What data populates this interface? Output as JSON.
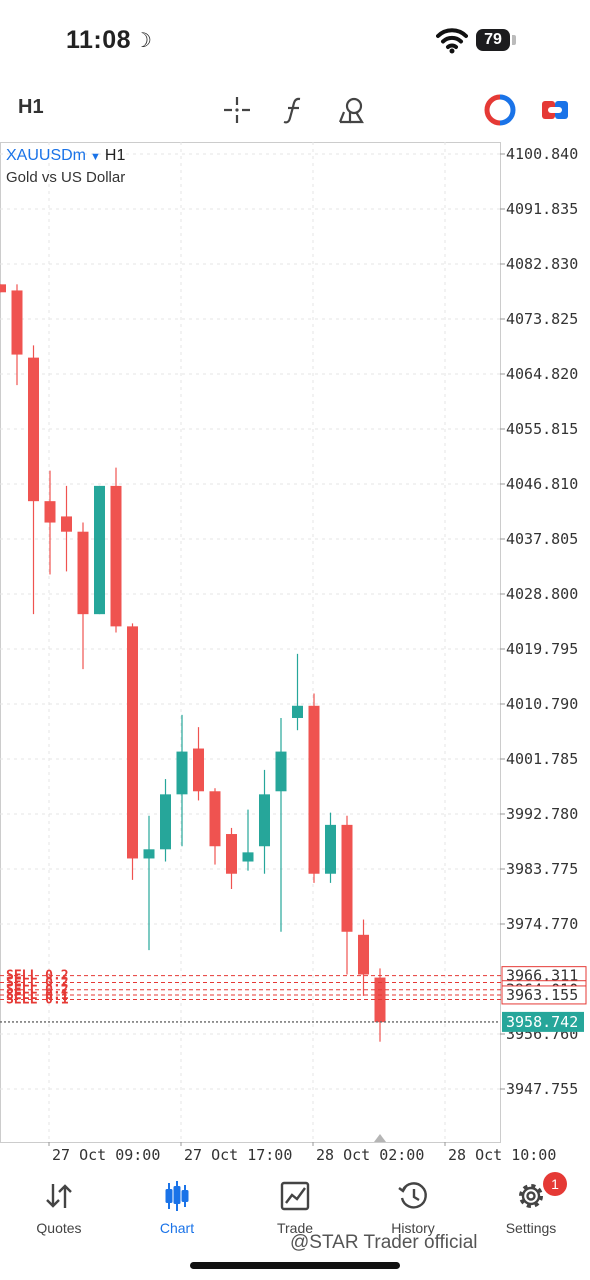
{
  "status_bar": {
    "time": "11:08",
    "battery": "79"
  },
  "toolbar": {
    "timeframe": "H1",
    "tools": [
      "crosshair-icon",
      "function-icon",
      "objects-icon",
      "one-click-trading-icon",
      "trade-toggle-icon"
    ]
  },
  "chart_header": {
    "symbol": "XAUUSDm",
    "timeframe": "H1",
    "description": "Gold vs US Dollar"
  },
  "colors": {
    "bull": "#26a69a",
    "bear": "#ef5350",
    "grid": "#e6e6e6",
    "axis": "#cccccc",
    "accent": "#1a73e8",
    "price_label": "#26a69a",
    "trade_line": "#e53935"
  },
  "chart_data": {
    "type": "candlestick",
    "ylim": [
      3940.0,
      4105.0
    ],
    "y_ticks": [
      "4100.840",
      "4091.835",
      "4082.830",
      "4073.825",
      "4064.820",
      "4055.815",
      "4046.810",
      "4037.805",
      "4028.800",
      "4019.795",
      "4010.790",
      "4001.785",
      "3992.780",
      "3983.775",
      "3974.770",
      "3956.760",
      "3947.755"
    ],
    "x_ticks": [
      "27 Oct 09:00",
      "27 Oct 17:00",
      "28 Oct 02:00",
      "28 Oct 10:00"
    ],
    "candles": [
      {
        "o": 4079.5,
        "h": 4079.5,
        "c": 4078.2,
        "l": 4078.2
      },
      {
        "o": 4078.5,
        "h": 4079.5,
        "c": 4068.0,
        "l": 4063.0
      },
      {
        "o": 4067.5,
        "h": 4069.5,
        "c": 4044.0,
        "l": 4025.5
      },
      {
        "o": 4044.0,
        "h": 4049.0,
        "c": 4040.5,
        "l": 4032.0
      },
      {
        "o": 4041.5,
        "h": 4046.5,
        "c": 4039.0,
        "l": 4032.5
      },
      {
        "o": 4039.0,
        "h": 4040.5,
        "c": 4025.5,
        "l": 4016.5
      },
      {
        "o": 4025.5,
        "h": 4046.5,
        "c": 4046.5,
        "l": 4025.5
      },
      {
        "o": 4046.5,
        "h": 4049.5,
        "c": 4023.5,
        "l": 4022.5
      },
      {
        "o": 4023.5,
        "h": 4024.0,
        "c": 3985.5,
        "l": 3982.0
      },
      {
        "o": 3985.5,
        "h": 3992.5,
        "c": 3987.0,
        "l": 3970.5
      },
      {
        "o": 3987.0,
        "h": 3998.5,
        "c": 3996.0,
        "l": 3985.0
      },
      {
        "o": 3996.0,
        "h": 4009.0,
        "c": 4003.0,
        "l": 3987.5
      },
      {
        "o": 4003.5,
        "h": 4007.0,
        "c": 3996.5,
        "l": 3995.0
      },
      {
        "o": 3996.5,
        "h": 3997.0,
        "c": 3987.5,
        "l": 3984.5
      },
      {
        "o": 3989.5,
        "h": 3990.5,
        "c": 3983.0,
        "l": 3980.5
      },
      {
        "o": 3985.0,
        "h": 3993.5,
        "c": 3986.5,
        "l": 3983.5
      },
      {
        "o": 3987.5,
        "h": 4000.0,
        "c": 3996.0,
        "l": 3983.0
      },
      {
        "o": 3996.5,
        "h": 4008.5,
        "c": 4003.0,
        "l": 3973.5
      },
      {
        "o": 4008.5,
        "h": 4019.0,
        "c": 4010.5,
        "l": 4006.5
      },
      {
        "o": 4010.5,
        "h": 4012.5,
        "c": 3983.0,
        "l": 3981.5
      },
      {
        "o": 3983.0,
        "h": 3993.0,
        "c": 3991.0,
        "l": 3981.5
      },
      {
        "o": 3991.0,
        "h": 3992.5,
        "c": 3973.5,
        "l": 3966.5
      },
      {
        "o": 3973.0,
        "h": 3975.5,
        "c": 3966.5,
        "l": 3963.0
      },
      {
        "o": 3966.0,
        "h": 3967.5,
        "c": 3958.7,
        "l": 3955.5
      }
    ],
    "current_price": 3958.742,
    "trade_lines": [
      {
        "label": "SELL 0.2",
        "price": 3966.311
      },
      {
        "label": "SELL 0.2",
        "price": 3965.2
      },
      {
        "label": "SELL 0.2",
        "price": 3964.01
      },
      {
        "label": "SELL 0.1",
        "price": 3963.155
      },
      {
        "label": "SELL 0.1",
        "price": 3962.4
      }
    ],
    "price_labels": [
      "3966.311",
      "3964.010",
      "3963.155"
    ],
    "current_price_label": "3958.742"
  },
  "nav": [
    {
      "label": "Quotes",
      "icon": "quotes-icon"
    },
    {
      "label": "Chart",
      "icon": "chart-icon",
      "active": true
    },
    {
      "label": "Trade",
      "icon": "trade-icon"
    },
    {
      "label": "History",
      "icon": "history-icon"
    },
    {
      "label": "Settings",
      "icon": "settings-icon",
      "badge": "1"
    }
  ],
  "watermark": "@STAR Trader official"
}
